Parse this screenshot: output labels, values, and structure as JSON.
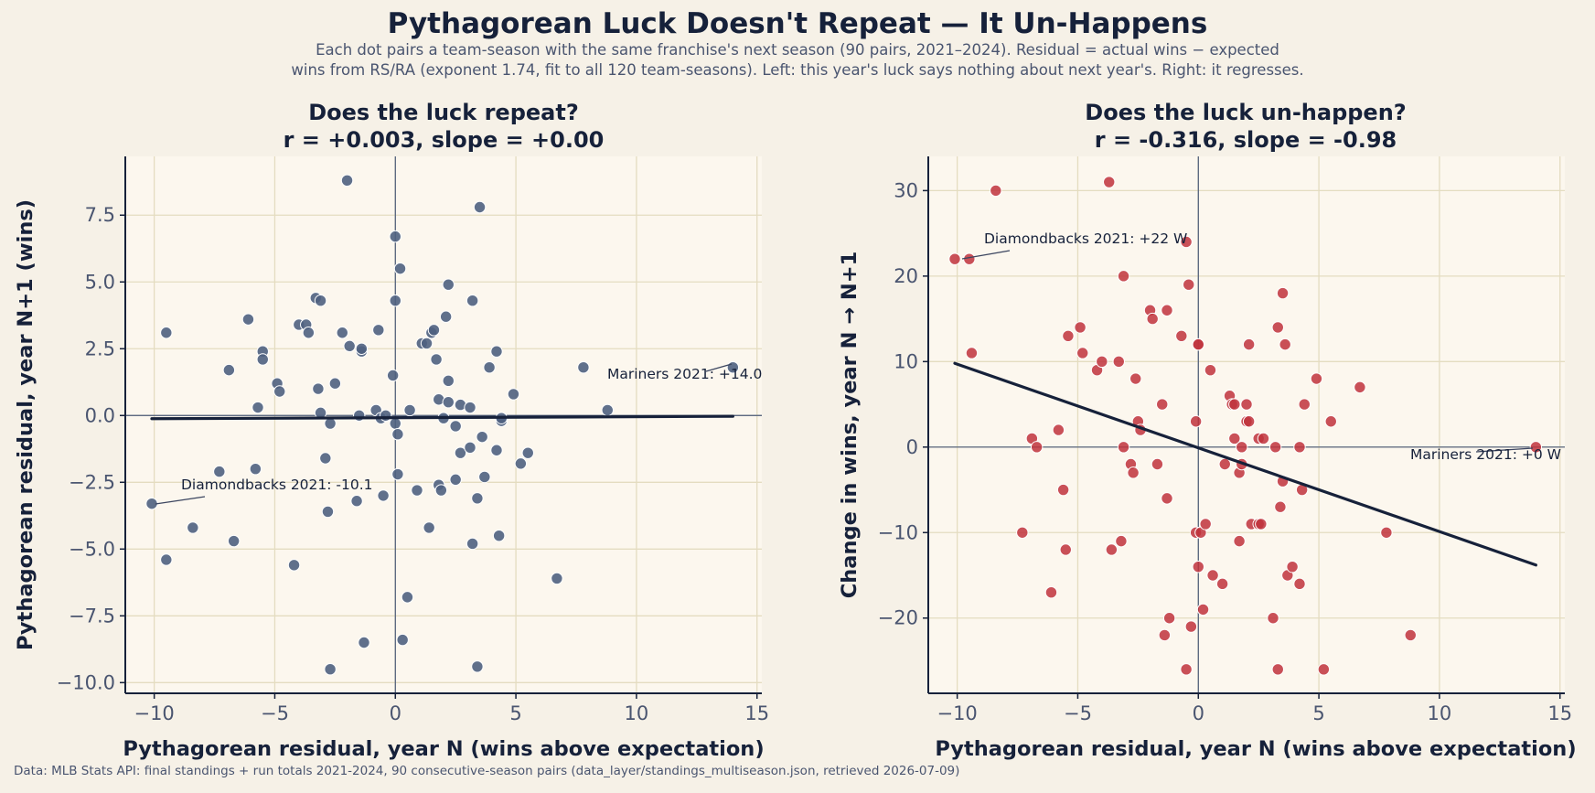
{
  "header": {
    "title": "Pythagorean Luck Doesn't Repeat — It Un-Happens",
    "subtitle_line1": "Each dot pairs a team-season with the same franchise's next season (90 pairs, 2021–2024). Residual = actual wins − expected",
    "subtitle_line2": "wins from RS/RA (exponent 1.74, fit to all 120 team-seasons). Left: this year's luck says nothing about next year's. Right: it regresses."
  },
  "footer": {
    "source": "Data: MLB Stats API: final standings + run totals 2021-2024, 90 consecutive-season pairs (data_layer/standings_multiseason.json, retrieved 2026-07-09)"
  },
  "colors": {
    "background": "#f6f1e7",
    "plot_background": "#fcf7ee",
    "grid": "#e4dcc0",
    "navy": "#16213a",
    "left_points": "#4f6180",
    "right_points": "#c0323c"
  },
  "chart_data": [
    {
      "type": "scatter",
      "title_line1": "Does the luck repeat?",
      "title_line2": "r = +0.003, slope = +0.00",
      "xlabel": "Pythagorean residual, year N (wins above expectation)",
      "ylabel": "Pythagorean residual, year N+1 (wins)",
      "xlim": [
        -11.2,
        15.2
      ],
      "ylim": [
        -10.4,
        9.7
      ],
      "xticks": [
        -10,
        -5,
        0,
        5,
        10,
        15
      ],
      "xtick_labels": [
        "−10",
        "−5",
        "0",
        "5",
        "10",
        "15"
      ],
      "yticks": [
        -10,
        -7.5,
        -5,
        -2.5,
        0,
        2.5,
        5,
        7.5
      ],
      "ytick_labels": [
        "−10.0",
        "−7.5",
        "−5.0",
        "−2.5",
        "0.0",
        "2.5",
        "5.0",
        "7.5"
      ],
      "grid": true,
      "fit_line": {
        "x": [
          -10.1,
          14.0
        ],
        "y": [
          -0.12,
          -0.03
        ]
      },
      "points": [
        [
          -10.1,
          -3.3
        ],
        [
          -9.5,
          3.1
        ],
        [
          -9.5,
          -5.4
        ],
        [
          -8.4,
          -4.2
        ],
        [
          -7.3,
          -2.1
        ],
        [
          -6.9,
          1.7
        ],
        [
          -6.7,
          -4.7
        ],
        [
          -6.1,
          3.6
        ],
        [
          -5.8,
          -2.0
        ],
        [
          -5.7,
          0.3
        ],
        [
          -5.5,
          2.4
        ],
        [
          -5.5,
          2.1
        ],
        [
          -4.9,
          1.2
        ],
        [
          -4.8,
          0.9
        ],
        [
          -4.2,
          -5.6
        ],
        [
          -4.0,
          3.4
        ],
        [
          -3.7,
          3.4
        ],
        [
          -3.6,
          3.1
        ],
        [
          -3.3,
          4.4
        ],
        [
          -3.2,
          1.0
        ],
        [
          -3.1,
          4.3
        ],
        [
          -3.1,
          0.1
        ],
        [
          -2.9,
          -1.6
        ],
        [
          -2.8,
          -3.6
        ],
        [
          -2.7,
          -0.3
        ],
        [
          -2.5,
          1.2
        ],
        [
          -2.2,
          3.1
        ],
        [
          -2.0,
          8.8
        ],
        [
          -1.9,
          2.6
        ],
        [
          -1.6,
          -3.2
        ],
        [
          -1.5,
          0.0
        ],
        [
          -1.4,
          2.4
        ],
        [
          -1.4,
          2.5
        ],
        [
          -1.3,
          -8.5
        ],
        [
          -0.8,
          0.2
        ],
        [
          -0.7,
          3.2
        ],
        [
          -0.6,
          -0.1
        ],
        [
          -0.5,
          -3.0
        ],
        [
          -0.4,
          0.0
        ],
        [
          -0.1,
          1.5
        ],
        [
          0.0,
          6.7
        ],
        [
          0.0,
          4.3
        ],
        [
          0.0,
          -0.3
        ],
        [
          0.1,
          -0.7
        ],
        [
          0.1,
          -2.2
        ],
        [
          0.2,
          5.5
        ],
        [
          0.3,
          -8.4
        ],
        [
          0.5,
          -6.8
        ],
        [
          0.6,
          0.2
        ],
        [
          0.9,
          -2.8
        ],
        [
          1.1,
          2.7
        ],
        [
          1.3,
          2.7
        ],
        [
          1.4,
          -4.2
        ],
        [
          1.5,
          3.1
        ],
        [
          1.6,
          3.2
        ],
        [
          1.7,
          2.1
        ],
        [
          1.8,
          0.6
        ],
        [
          1.8,
          -2.6
        ],
        [
          1.9,
          -2.8
        ],
        [
          2.0,
          -0.1
        ],
        [
          2.1,
          3.7
        ],
        [
          2.2,
          4.9
        ],
        [
          2.2,
          1.3
        ],
        [
          2.2,
          0.5
        ],
        [
          2.5,
          -0.4
        ],
        [
          2.5,
          -2.4
        ],
        [
          2.7,
          0.4
        ],
        [
          2.7,
          -1.4
        ],
        [
          3.1,
          -1.2
        ],
        [
          3.1,
          0.3
        ],
        [
          3.2,
          4.3
        ],
        [
          3.2,
          -4.8
        ],
        [
          3.4,
          -9.4
        ],
        [
          3.4,
          -3.1
        ],
        [
          3.5,
          7.8
        ],
        [
          3.6,
          -0.8
        ],
        [
          3.7,
          -2.3
        ],
        [
          3.9,
          1.8
        ],
        [
          4.2,
          -1.3
        ],
        [
          4.2,
          2.4
        ],
        [
          4.3,
          -4.5
        ],
        [
          4.4,
          -0.2
        ],
        [
          4.4,
          -0.1
        ],
        [
          4.9,
          0.8
        ],
        [
          5.2,
          -1.8
        ],
        [
          5.5,
          -1.4
        ],
        [
          6.7,
          -6.1
        ],
        [
          7.8,
          1.8
        ],
        [
          8.8,
          0.2
        ],
        [
          14.0,
          1.8
        ],
        [
          -2.7,
          -9.5
        ]
      ],
      "annotations": [
        {
          "text": "Mariners 2021: +14.0",
          "point": [
            14.0,
            1.8
          ]
        },
        {
          "text": "Diamondbacks 2021: -10.1",
          "point": [
            -10.1,
            -3.3
          ]
        }
      ]
    },
    {
      "type": "scatter",
      "title_line1": "Does the luck un-happen?",
      "title_line2": "r = -0.316, slope = -0.98",
      "xlabel": "Pythagorean residual, year N (wins above expectation)",
      "ylabel": "Change in wins, year N → N+1",
      "xlim": [
        -11.2,
        15.2
      ],
      "ylim": [
        -28.8,
        34
      ],
      "xticks": [
        -10,
        -5,
        0,
        5,
        10,
        15
      ],
      "xtick_labels": [
        "−10",
        "−5",
        "0",
        "5",
        "10",
        "15"
      ],
      "yticks": [
        -20,
        -10,
        0,
        10,
        20,
        30
      ],
      "ytick_labels": [
        "−20",
        "−10",
        "0",
        "10",
        "20",
        "30"
      ],
      "grid": true,
      "fit_line": {
        "x": [
          -10.1,
          14.0
        ],
        "y": [
          9.8,
          -13.8
        ]
      },
      "points": [
        [
          -10.1,
          22
        ],
        [
          -9.5,
          22
        ],
        [
          -9.4,
          11
        ],
        [
          -8.4,
          30
        ],
        [
          -7.3,
          -10
        ],
        [
          -6.9,
          1
        ],
        [
          -6.7,
          0
        ],
        [
          -6.1,
          -17
        ],
        [
          -5.8,
          2
        ],
        [
          -5.6,
          -5
        ],
        [
          -5.5,
          -12
        ],
        [
          -5.4,
          13
        ],
        [
          -4.9,
          14
        ],
        [
          -4.8,
          11
        ],
        [
          -4.2,
          9
        ],
        [
          -4.0,
          10
        ],
        [
          -3.7,
          31
        ],
        [
          -3.6,
          -12
        ],
        [
          -3.3,
          10
        ],
        [
          -3.2,
          -11
        ],
        [
          -3.1,
          0
        ],
        [
          -3.1,
          20
        ],
        [
          -2.8,
          -2
        ],
        [
          -2.7,
          -3
        ],
        [
          -2.6,
          8
        ],
        [
          -2.5,
          3
        ],
        [
          -2.4,
          2
        ],
        [
          -2.0,
          16
        ],
        [
          -1.9,
          15
        ],
        [
          -1.7,
          -2
        ],
        [
          -1.5,
          5
        ],
        [
          -1.4,
          -22
        ],
        [
          -1.3,
          16
        ],
        [
          -1.3,
          -6
        ],
        [
          -1.2,
          -20
        ],
        [
          -0.7,
          13
        ],
        [
          -0.5,
          24
        ],
        [
          -0.4,
          19
        ],
        [
          -0.3,
          -21
        ],
        [
          -0.5,
          -26
        ],
        [
          -0.1,
          -10
        ],
        [
          -0.1,
          3
        ],
        [
          0.0,
          12
        ],
        [
          0.0,
          -14
        ],
        [
          0.1,
          -10
        ],
        [
          0.2,
          -19
        ],
        [
          0.3,
          -9
        ],
        [
          0.5,
          9
        ],
        [
          0.6,
          -15
        ],
        [
          1.0,
          -16
        ],
        [
          1.1,
          -2
        ],
        [
          1.3,
          6
        ],
        [
          1.4,
          5
        ],
        [
          1.5,
          1
        ],
        [
          1.5,
          5
        ],
        [
          1.7,
          -3
        ],
        [
          1.7,
          -11
        ],
        [
          1.8,
          -2
        ],
        [
          1.8,
          0
        ],
        [
          2.0,
          5
        ],
        [
          2.0,
          3
        ],
        [
          2.1,
          3
        ],
        [
          2.1,
          12
        ],
        [
          2.2,
          -9
        ],
        [
          2.5,
          -9
        ],
        [
          2.5,
          1
        ],
        [
          2.6,
          -9
        ],
        [
          2.7,
          1
        ],
        [
          3.1,
          -20
        ],
        [
          3.2,
          0
        ],
        [
          3.3,
          14
        ],
        [
          3.3,
          -26
        ],
        [
          3.4,
          -7
        ],
        [
          3.5,
          -4
        ],
        [
          3.5,
          18
        ],
        [
          3.6,
          12
        ],
        [
          3.7,
          -15
        ],
        [
          3.9,
          -14
        ],
        [
          4.2,
          -16
        ],
        [
          4.2,
          0
        ],
        [
          4.3,
          -5
        ],
        [
          4.4,
          5
        ],
        [
          4.9,
          8
        ],
        [
          5.2,
          -26
        ],
        [
          5.5,
          3
        ],
        [
          6.7,
          7
        ],
        [
          7.8,
          -10
        ],
        [
          8.8,
          -22
        ],
        [
          14.0,
          0
        ],
        [
          0.0,
          12
        ]
      ],
      "annotations": [
        {
          "text": "Diamondbacks 2021: +22 W",
          "point": [
            -10.1,
            22
          ]
        },
        {
          "text": "Mariners 2021: +0 W",
          "point": [
            14.0,
            0
          ]
        }
      ]
    }
  ]
}
